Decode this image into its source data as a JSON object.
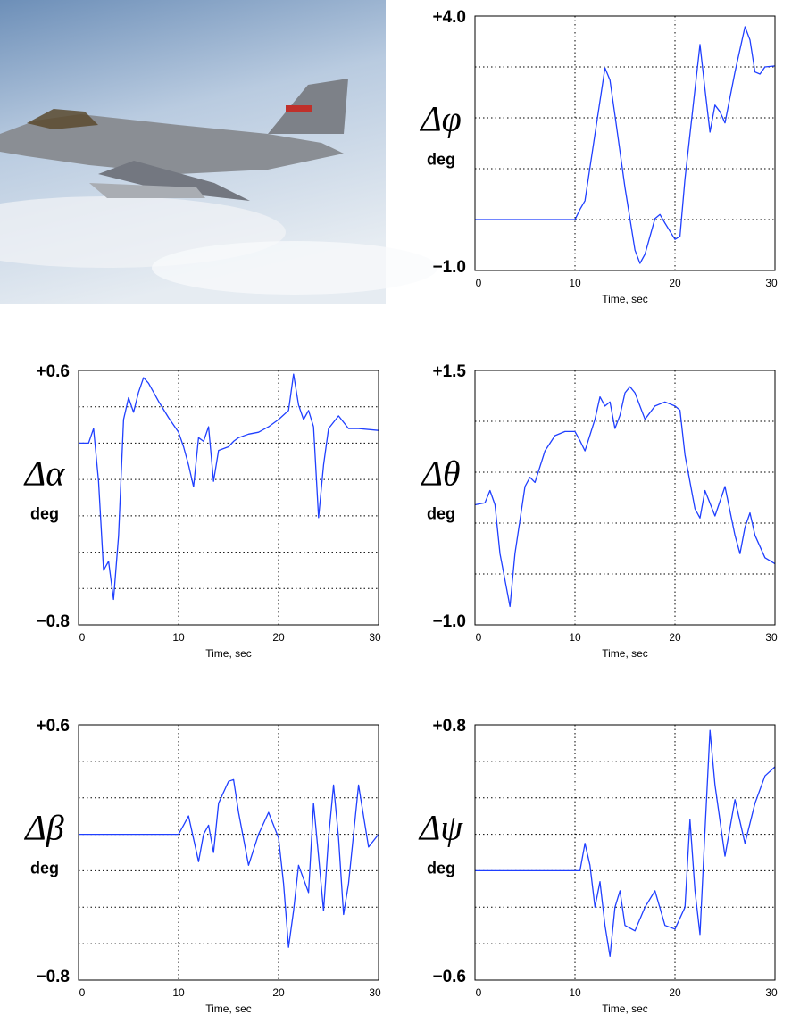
{
  "chart_data": [
    {
      "type": "line",
      "ylabel": "Δφ",
      "yunit": "deg",
      "xlabel": "Time, sec",
      "color": "#1f3fff",
      "xlim": [
        0,
        30
      ],
      "xticks": [
        0,
        10,
        20,
        30
      ],
      "ylim": [
        -1,
        4
      ],
      "yticks": [
        {
          "value": -1,
          "label": "−1.0"
        },
        {
          "value": 4,
          "label": "+4.0"
        }
      ],
      "ygrid": [
        0,
        1,
        2,
        3
      ],
      "x": [
        0,
        10,
        10.5,
        11,
        12,
        13,
        13.5,
        14,
        15,
        16,
        16.5,
        17,
        18,
        18.5,
        19,
        20,
        20.5,
        21,
        22,
        22.5,
        23,
        23.5,
        24,
        24.5,
        25,
        26,
        27,
        27.5,
        28,
        28.5,
        29,
        30
      ],
      "values": [
        0,
        0,
        0.2,
        0.37,
        1.68,
        2.98,
        2.74,
        2.05,
        0.63,
        -0.6,
        -0.86,
        -0.68,
        0.02,
        0.1,
        -0.07,
        -0.39,
        -0.33,
        0.8,
        2.56,
        3.44,
        2.56,
        1.72,
        2.25,
        2.12,
        1.9,
        2.9,
        3.79,
        3.53,
        2.9,
        2.86,
        3.0,
        3.02
      ]
    },
    {
      "type": "line",
      "ylabel": "Δα",
      "yunit": "deg",
      "xlabel": "Time, sec",
      "color": "#1f3fff",
      "xlim": [
        0,
        30
      ],
      "xticks": [
        0,
        10,
        20,
        30
      ],
      "ylim": [
        -0.8,
        0.6
      ],
      "yticks": [
        {
          "value": -0.8,
          "label": "−0.8"
        },
        {
          "value": 0.6,
          "label": "+0.6"
        }
      ],
      "ygrid": [
        -0.6,
        -0.4,
        -0.2,
        0,
        0.2,
        0.4
      ],
      "x": [
        0,
        1,
        1.5,
        2,
        2.5,
        3,
        3.5,
        4,
        4.5,
        5,
        5.5,
        6,
        6.5,
        7,
        8,
        9,
        10,
        10.5,
        11,
        11.5,
        12,
        12.5,
        13,
        13.5,
        14,
        15,
        15.5,
        16,
        17,
        18,
        19,
        20,
        21,
        21.5,
        22,
        22.5,
        23,
        23.5,
        24,
        24.5,
        25,
        26,
        27,
        28,
        30
      ],
      "values": [
        0.2,
        0.2,
        0.28,
        -0.01,
        -0.5,
        -0.45,
        -0.66,
        -0.31,
        0.33,
        0.45,
        0.37,
        0.48,
        0.56,
        0.53,
        0.43,
        0.34,
        0.26,
        0.18,
        0.08,
        -0.04,
        0.23,
        0.21,
        0.29,
        -0.01,
        0.16,
        0.18,
        0.21,
        0.23,
        0.25,
        0.26,
        0.29,
        0.33,
        0.38,
        0.58,
        0.41,
        0.33,
        0.38,
        0.29,
        -0.21,
        0.08,
        0.28,
        0.35,
        0.28,
        0.28,
        0.27
      ]
    },
    {
      "type": "line",
      "ylabel": "Δθ",
      "yunit": "deg",
      "xlabel": "Time, sec",
      "color": "#1f3fff",
      "xlim": [
        0,
        30
      ],
      "xticks": [
        0,
        10,
        20,
        30
      ],
      "ylim": [
        -1,
        1.5
      ],
      "yticks": [
        {
          "value": -1,
          "label": "−1.0"
        },
        {
          "value": 1.5,
          "label": "+1.5"
        }
      ],
      "ygrid": [
        -0.5,
        0,
        0.5,
        1
      ],
      "x": [
        0,
        1,
        1.5,
        2,
        2.5,
        3,
        3.5,
        4,
        5,
        5.5,
        6,
        7,
        8,
        9,
        10,
        10.5,
        11,
        12,
        12.5,
        13,
        13.5,
        14,
        14.5,
        15,
        15.5,
        16,
        17,
        18,
        19,
        20,
        20.5,
        21,
        22,
        22.5,
        23,
        24,
        25,
        26,
        26.5,
        27,
        27.5,
        28,
        29,
        30
      ],
      "values": [
        0.18,
        0.2,
        0.32,
        0.18,
        -0.3,
        -0.56,
        -0.82,
        -0.3,
        0.36,
        0.45,
        0.4,
        0.71,
        0.86,
        0.9,
        0.9,
        0.81,
        0.71,
        1.02,
        1.24,
        1.15,
        1.19,
        0.93,
        1.06,
        1.28,
        1.34,
        1.28,
        1.02,
        1.15,
        1.19,
        1.15,
        1.11,
        0.67,
        0.14,
        0.05,
        0.32,
        0.07,
        0.36,
        -0.12,
        -0.3,
        -0.04,
        0.1,
        -0.12,
        -0.34,
        -0.4
      ]
    },
    {
      "type": "line",
      "ylabel": "Δβ",
      "yunit": "deg",
      "xlabel": "Time, sec",
      "color": "#1f3fff",
      "xlim": [
        0,
        30
      ],
      "xticks": [
        0,
        10,
        20,
        30
      ],
      "ylim": [
        -0.8,
        0.6
      ],
      "yticks": [
        {
          "value": -0.8,
          "label": "−0.8"
        },
        {
          "value": 0.6,
          "label": "+0.6"
        }
      ],
      "ygrid": [
        -0.6,
        -0.4,
        -0.2,
        0,
        0.2,
        0.4
      ],
      "x": [
        0,
        10,
        10.5,
        11,
        12,
        12.5,
        13,
        13.5,
        14,
        15,
        15.5,
        16,
        17,
        18,
        19,
        20,
        20.5,
        21,
        21.5,
        22,
        23,
        23.5,
        24,
        24.5,
        25,
        25.5,
        26,
        26.5,
        27,
        28,
        29,
        30
      ],
      "values": [
        0,
        0,
        0.05,
        0.1,
        -0.15,
        0,
        0.05,
        -0.1,
        0.17,
        0.29,
        0.3,
        0.12,
        -0.17,
        0,
        0.12,
        -0.02,
        -0.27,
        -0.62,
        -0.42,
        -0.17,
        -0.32,
        0.17,
        -0.12,
        -0.42,
        -0.02,
        0.27,
        -0.02,
        -0.44,
        -0.27,
        0.27,
        -0.07,
        0
      ]
    },
    {
      "type": "line",
      "ylabel": "Δψ",
      "yunit": "deg",
      "xlabel": "Time, sec",
      "color": "#1f3fff",
      "xlim": [
        0,
        30
      ],
      "xticks": [
        0,
        10,
        20,
        30
      ],
      "ylim": [
        -0.6,
        0.8
      ],
      "yticks": [
        {
          "value": -0.6,
          "label": "−0.6"
        },
        {
          "value": 0.8,
          "label": "+0.8"
        }
      ],
      "ygrid": [
        -0.4,
        -0.2,
        0,
        0.2,
        0.4,
        0.6
      ],
      "x": [
        0,
        10.5,
        11,
        11.5,
        12,
        12.5,
        13,
        13.5,
        14,
        14.5,
        15,
        16,
        17,
        18,
        19,
        20,
        21,
        21.5,
        22,
        22.5,
        23,
        23.5,
        24,
        25,
        26,
        27,
        28,
        29,
        30
      ],
      "values": [
        0,
        0,
        0.15,
        0.03,
        -0.2,
        -0.06,
        -0.3,
        -0.47,
        -0.2,
        -0.11,
        -0.3,
        -0.33,
        -0.2,
        -0.11,
        -0.3,
        -0.32,
        -0.2,
        0.28,
        -0.11,
        -0.35,
        0.22,
        0.77,
        0.47,
        0.08,
        0.39,
        0.15,
        0.37,
        0.52,
        0.57
      ]
    }
  ]
}
